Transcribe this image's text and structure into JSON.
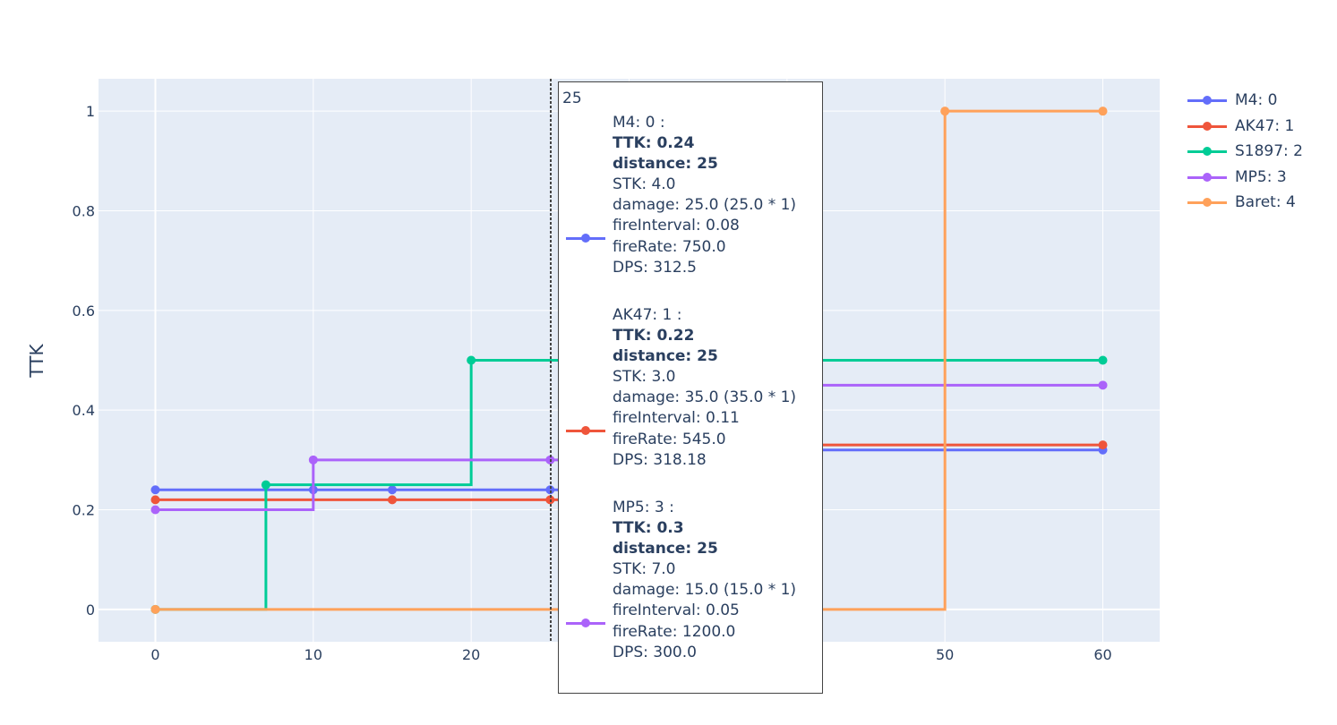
{
  "chart_data": {
    "type": "line",
    "line_shape": "step-after",
    "title": "",
    "xlabel": "",
    "ylabel": "TTK",
    "xlim": [
      -3.6,
      63.6
    ],
    "ylim": [
      -0.065,
      1.065
    ],
    "x_ticks": [
      "0",
      "10",
      "20",
      "30",
      "40",
      "50",
      "60"
    ],
    "y_ticks": [
      "0",
      "0.2",
      "0.4",
      "0.6",
      "0.8",
      "1"
    ],
    "grid": true,
    "plot_bgcolor": "#e5ecf6",
    "legend_position": "top-right",
    "series": [
      {
        "name": "M4: 0",
        "color": "#636efa",
        "x": [
          0,
          10,
          15,
          25,
          30,
          60
        ],
        "y": [
          0.24,
          0.24,
          0.24,
          0.24,
          0.32,
          0.32
        ]
      },
      {
        "name": "AK47: 1",
        "color": "#ef553b",
        "x": [
          0,
          15,
          25,
          30,
          60
        ],
        "y": [
          0.22,
          0.22,
          0.22,
          0.33,
          0.33
        ]
      },
      {
        "name": "S1897: 2",
        "color": "#00cc96",
        "x": [
          0,
          7,
          20,
          60
        ],
        "y": [
          0,
          0.25,
          0.5,
          0.5
        ]
      },
      {
        "name": "MP5: 3",
        "color": "#ab63fa",
        "x": [
          0,
          10,
          25,
          30,
          60
        ],
        "y": [
          0.2,
          0.3,
          0.3,
          0.45,
          0.45
        ]
      },
      {
        "name": "Baret: 4",
        "color": "#ffa15a",
        "x": [
          0,
          50,
          60
        ],
        "y": [
          0,
          1,
          1
        ]
      }
    ]
  },
  "hover": {
    "x_label": "25",
    "entries": [
      {
        "color": "#636efa",
        "header": "M4: 0 :",
        "ttk": "TTK: 0.24",
        "distance": "distance: 25",
        "stk": "STK: 4.0",
        "damage": "damage: 25.0 (25.0 * 1)",
        "fire_interval": "fireInterval: 0.08",
        "fire_rate": "fireRate: 750.0",
        "dps": "DPS: 312.5"
      },
      {
        "color": "#ef553b",
        "header": "AK47: 1 :",
        "ttk": "TTK: 0.22",
        "distance": "distance: 25",
        "stk": "STK: 3.0",
        "damage": "damage: 35.0 (35.0 * 1)",
        "fire_interval": "fireInterval: 0.11",
        "fire_rate": "fireRate: 545.0",
        "dps": "DPS: 318.18"
      },
      {
        "color": "#ab63fa",
        "header": "MP5: 3 :",
        "ttk": "TTK: 0.3",
        "distance": "distance: 25",
        "stk": "STK: 7.0",
        "damage": "damage: 15.0 (15.0 * 1)",
        "fire_interval": "fireInterval: 0.05",
        "fire_rate": "fireRate: 1200.0",
        "dps": "DPS: 300.0"
      }
    ]
  }
}
